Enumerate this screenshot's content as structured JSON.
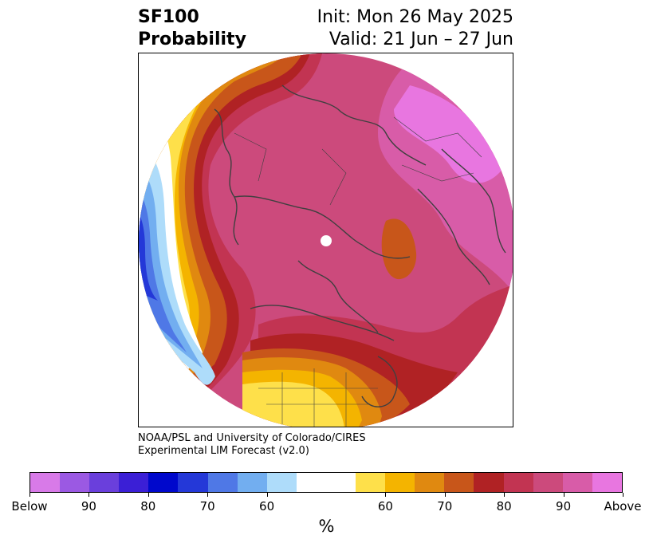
{
  "title": {
    "left_line1": "SF100",
    "left_line2": "Probability",
    "right_line1": "Init: Mon 26 May 2025",
    "right_line2": "Valid: 21 Jun – 27 Jun"
  },
  "credit": {
    "line1": "NOAA/PSL and University of Colorado/CIRES",
    "line2": "Experimental LIM Forecast (v2.0)"
  },
  "colorbar": {
    "unit": "%",
    "colors": [
      "#d87ae8",
      "#9b59e3",
      "#6a3fdc",
      "#3b1fd6",
      "#0008cc",
      "#2438d8",
      "#4f78e6",
      "#72aef0",
      "#aedcfa",
      "#ffffff",
      "#ffffff",
      "#fee04a",
      "#f4b400",
      "#e08910",
      "#c8561a",
      "#b02224",
      "#c23452",
      "#cc4a7c",
      "#d85ca8",
      "#e876e0"
    ],
    "tick_labels": [
      {
        "label": "Below",
        "index": 0
      },
      {
        "label": "90",
        "index": 2
      },
      {
        "label": "80",
        "index": 4
      },
      {
        "label": "70",
        "index": 6
      },
      {
        "label": "60",
        "index": 8
      },
      {
        "label": "60",
        "index": 12
      },
      {
        "label": "70",
        "index": 14
      },
      {
        "label": "80",
        "index": 16
      },
      {
        "label": "90",
        "index": 18
      },
      {
        "label": "Above",
        "index": 20
      }
    ]
  },
  "map": {
    "projection": "north polar stereographic",
    "colors": {
      "above_90": "#e876e0",
      "above_85": "#d85ca8",
      "above_80": "#cc4a7c",
      "above_75": "#c23452",
      "above_70": "#b02224",
      "above_65": "#c8561a",
      "above_60": "#e08910",
      "above_55": "#f4b400",
      "above_50": "#fee04a",
      "below_50": "#aedcfa",
      "below_55": "#72aef0",
      "below_60": "#4f78e6",
      "below_65": "#2438d8",
      "coast": "#404040"
    }
  }
}
